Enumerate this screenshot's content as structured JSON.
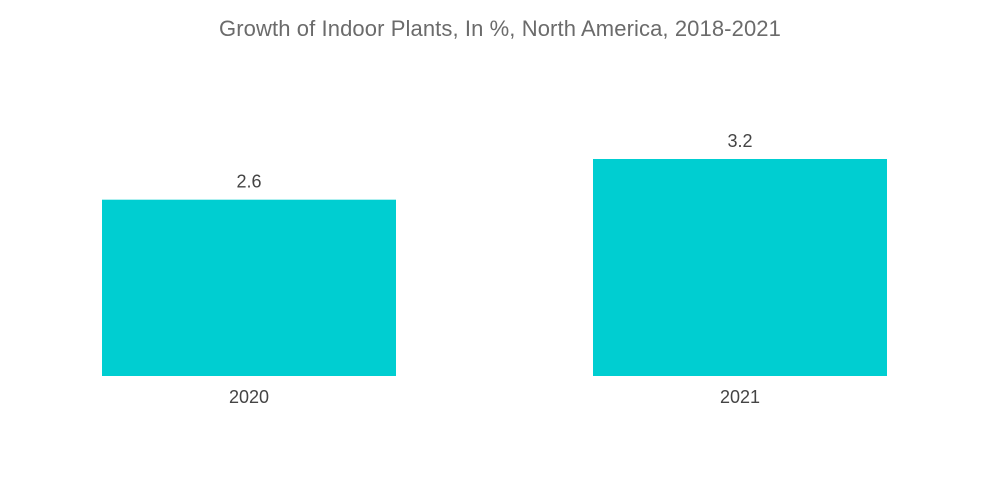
{
  "chart_data": {
    "type": "bar",
    "title": "Growth of Indoor Plants, In %, North America, 2018-2021",
    "categories": [
      "2020",
      "2021"
    ],
    "values": [
      2.6,
      3.2
    ],
    "value_labels": [
      "2.6",
      "3.2"
    ],
    "xlabel": "",
    "ylabel": "",
    "ylim": [
      0,
      3.2
    ],
    "grid": false,
    "legend": "none",
    "colors": {
      "bar": "#00ced1",
      "text": "#444444",
      "title": "#6b6b6b"
    }
  }
}
